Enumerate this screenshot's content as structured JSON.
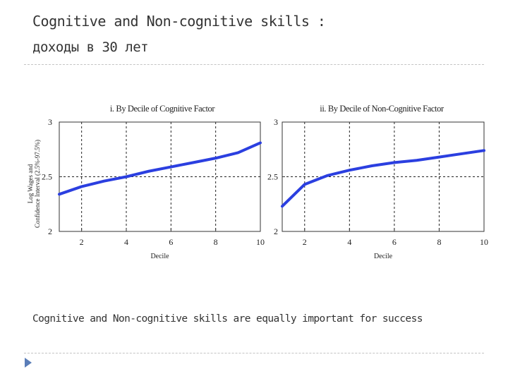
{
  "slide": {
    "title": "Cognitive and Non-cognitive skills :",
    "subtitle": "доходы в 30 лет",
    "caption": "Cognitive and Non-cognitive skills are equally important for success",
    "accent_color": "#3b55a8",
    "bullet_icon": "triangle-bullet-icon"
  },
  "chart_data": [
    {
      "type": "line",
      "title": "i. By Decile of Cognitive Factor",
      "xlabel": "Decile",
      "ylabel": "Log Wages and Confidence Interval (2.5%-97.5%)",
      "xlim": [
        1,
        10
      ],
      "ylim": [
        2,
        3
      ],
      "xticks": [
        2,
        4,
        6,
        8,
        10
      ],
      "yticks": [
        2,
        2.5,
        3
      ],
      "grid": true,
      "line_color": "#2b3fe0",
      "series": [
        {
          "x": [
            1,
            2,
            3,
            4,
            5,
            6,
            7,
            8,
            9,
            10
          ],
          "y": [
            2.34,
            2.41,
            2.46,
            2.5,
            2.55,
            2.59,
            2.63,
            2.67,
            2.72,
            2.81
          ]
        }
      ]
    },
    {
      "type": "line",
      "title": "ii. By Decile of Non-Cognitive Factor",
      "xlabel": "Decile",
      "ylabel": "",
      "xlim": [
        1,
        10
      ],
      "ylim": [
        2,
        3
      ],
      "xticks": [
        2,
        4,
        6,
        8,
        10
      ],
      "yticks": [
        2,
        2.5,
        3
      ],
      "grid": true,
      "line_color": "#2b3fe0",
      "series": [
        {
          "x": [
            1,
            2,
            3,
            4,
            5,
            6,
            7,
            8,
            9,
            10
          ],
          "y": [
            2.23,
            2.43,
            2.51,
            2.56,
            2.6,
            2.63,
            2.65,
            2.68,
            2.71,
            2.74
          ]
        }
      ]
    }
  ]
}
